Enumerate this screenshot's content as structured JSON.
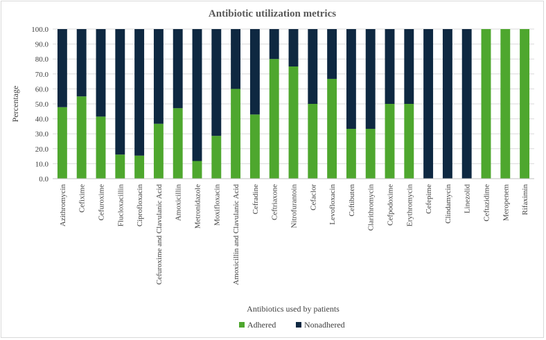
{
  "chart_data": {
    "type": "bar",
    "stacked": true,
    "title": "Antibiotic utilization metrics",
    "xlabel": "Antibiotics used by patients",
    "ylabel": "Percentage",
    "ylim": [
      0,
      100
    ],
    "yticks": [
      "0.0",
      "10.0",
      "20.0",
      "30.0",
      "40.0",
      "50.0",
      "60.0",
      "70.0",
      "80.0",
      "90.0",
      "100.0"
    ],
    "grid": true,
    "legend_position": "bottom",
    "categories": [
      "Azithromycin",
      "Cefixime",
      "Cefuroxime",
      "Flucloxacillin",
      "Ciprofloxacin",
      "Cefuroxime and Clavulanic Acid",
      "Amoxicillin",
      "Metronidazole",
      "Moxifloxacin",
      "Amoxicillin and Clavulanic Acid",
      "Cefradine",
      "Ceftriaxone",
      "Nitrofurantoin",
      "Cefaclor",
      "Levofloxacin",
      "Ceftibuten",
      "Clarithromycin",
      "Cefpodoxime",
      "Erythromycin",
      "Cefepime",
      "Clindamycin",
      "Linezolid",
      "Ceftazidime",
      "Meropenem",
      "Rifaximin"
    ],
    "series": [
      {
        "name": "Adhered",
        "color": "#4ea72e",
        "values": [
          47.8,
          55,
          41.5,
          16.1,
          15.4,
          36.7,
          47.1,
          11.8,
          28.6,
          60,
          42.9,
          80,
          75,
          50,
          66.7,
          33.3,
          33.3,
          50,
          50,
          0,
          0,
          0,
          100,
          100,
          100
        ]
      },
      {
        "name": "Nonadhered",
        "color": "#0e2841",
        "values": [
          52.2,
          45,
          58.5,
          83.9,
          84.6,
          63.3,
          52.9,
          88.2,
          71.4,
          40,
          57.1,
          20,
          25,
          50,
          33.3,
          66.7,
          66.7,
          50,
          50,
          100,
          100,
          100,
          0,
          0,
          0
        ]
      }
    ]
  }
}
